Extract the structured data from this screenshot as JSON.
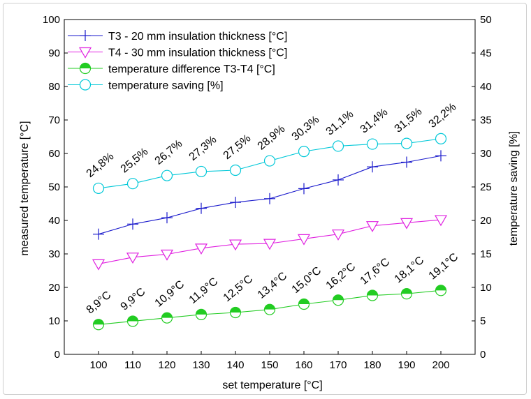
{
  "chart_data": {
    "type": "line",
    "xlabel": "set temperature [°C]",
    "ylabel": "measured temperature [°C]",
    "y2label": "temperature saving [%]",
    "xlim": [
      90,
      210
    ],
    "ylim": [
      0,
      100
    ],
    "y2lim": [
      0,
      50
    ],
    "x_ticks": [
      "100",
      "110",
      "120",
      "130",
      "140",
      "150",
      "160",
      "170",
      "180",
      "190",
      "200"
    ],
    "y_ticks": [
      "0",
      "10",
      "20",
      "30",
      "40",
      "50",
      "60",
      "70",
      "80",
      "90",
      "100"
    ],
    "y2_ticks": [
      "0",
      "5",
      "10",
      "15",
      "20",
      "25",
      "30",
      "35",
      "40",
      "45",
      "50"
    ],
    "x": [
      100,
      110,
      120,
      130,
      140,
      150,
      160,
      170,
      180,
      190,
      200
    ],
    "legend_position": "top-left",
    "grid": false,
    "series": [
      {
        "name": "T3 - 20 mm insulation thickness [°C]",
        "axis": "left",
        "marker": "plus",
        "color": "#1a1acc",
        "values": [
          35.9,
          38.9,
          40.8,
          43.6,
          45.4,
          46.5,
          49.5,
          52.1,
          56.0,
          57.4,
          59.3
        ]
      },
      {
        "name": "T4 - 30 mm insulation thickness [°C]",
        "axis": "left",
        "marker": "triangle-down",
        "color": "#e020e0",
        "values": [
          27.0,
          29.0,
          29.9,
          31.7,
          32.9,
          33.1,
          34.5,
          35.9,
          38.4,
          39.3,
          40.2
        ]
      },
      {
        "name": "temperature difference T3-T4 [°C]",
        "axis": "left",
        "marker": "half-filled-circle",
        "color": "#22cc22",
        "values": [
          8.9,
          9.9,
          10.9,
          11.9,
          12.5,
          13.4,
          15.0,
          16.2,
          17.6,
          18.1,
          19.1
        ],
        "labels": [
          "8,9°C",
          "9,9°C",
          "10,9°C",
          "11,9°C",
          "12,5°C",
          "13,4°C",
          "15,0°C",
          "16,2°C",
          "17,6°C",
          "18,1°C",
          "19,1°C"
        ]
      },
      {
        "name": "temperature saving [%]",
        "axis": "right",
        "marker": "open-circle",
        "color": "#00c8d8",
        "values": [
          24.8,
          25.5,
          26.7,
          27.3,
          27.5,
          28.9,
          30.3,
          31.1,
          31.4,
          31.5,
          32.2
        ],
        "labels": [
          "24,8%",
          "25,5%",
          "26,7%",
          "27,3%",
          "27,5%",
          "28,9%",
          "30,3%",
          "31,1%",
          "31,4%",
          "31,5%",
          "32,2%"
        ]
      }
    ]
  }
}
